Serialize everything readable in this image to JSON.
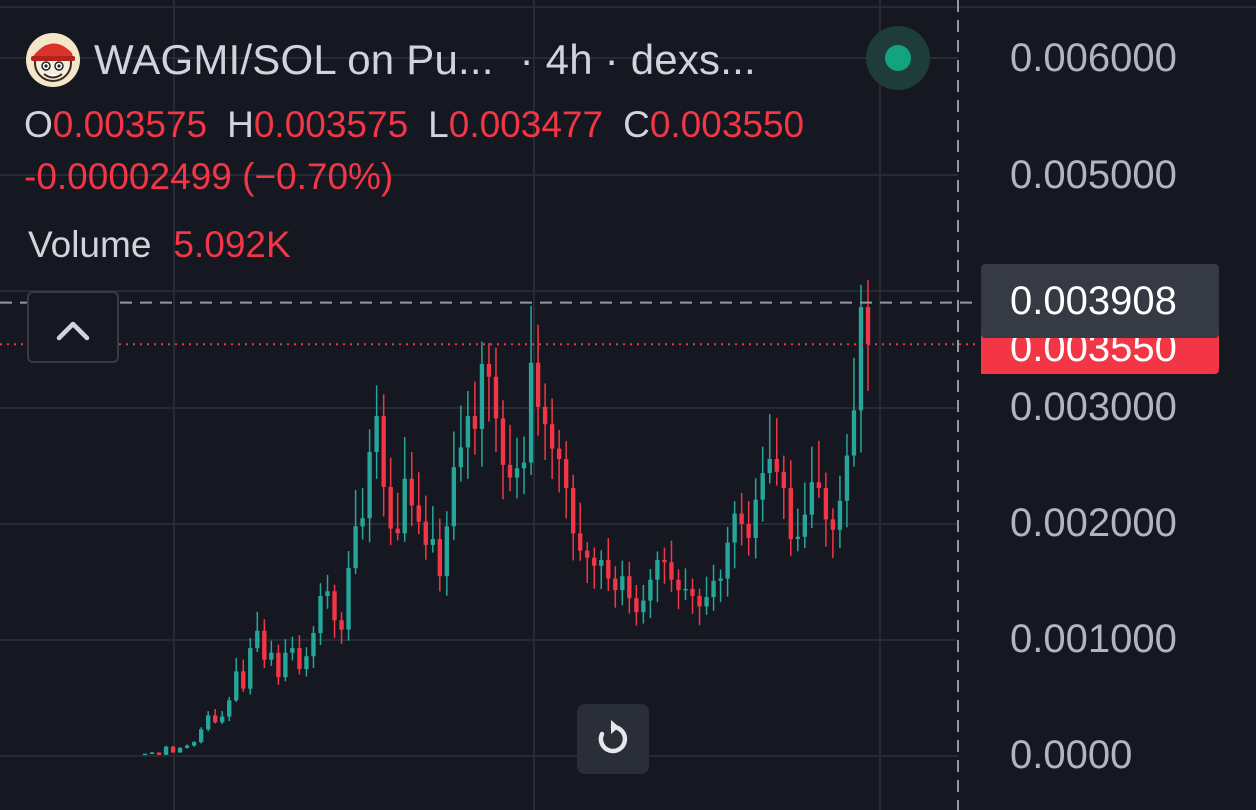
{
  "header": {
    "symbol_title": "WAGMI/SOL on Pu...",
    "interval_source": "· 4h · dexs..."
  },
  "ohlc": {
    "open_label": "O",
    "open": "0.003575",
    "high_label": "H",
    "high": "0.003575",
    "low_label": "L",
    "low": "0.003477",
    "close_label": "C",
    "close": "0.003550",
    "change": "-0.00002499 (−0.70%)"
  },
  "volume": {
    "label": "Volume",
    "value": "5.092K"
  },
  "price_scale": {
    "crosshair_price": "0.003908",
    "last_price": "0.003550"
  },
  "icons": {
    "token_avatar": "cartoon-face-icon",
    "live_status": "live-dot-icon",
    "collapse": "chevron-up-icon",
    "reset": "reset-rotate-icon"
  },
  "colors": {
    "background": "#151821",
    "up": "#26a69a",
    "down": "#f23645",
    "live": "#14a37f",
    "axis_text": "#b2b5be"
  },
  "chart_data": {
    "type": "candlestick",
    "title": "WAGMI/SOL on Pu... · 4h · dexs...",
    "yaxis_ticks": [
      "0.0000",
      "0.001000",
      "0.002000",
      "0.003000",
      "0.005000",
      "0.006000"
    ],
    "ylim": [
      0,
      0.0062
    ],
    "grid": true,
    "last_price": 0.00355,
    "crosshair_price": 0.003908,
    "close_series": [
      2e-05,
      3e-05,
      1e-05,
      8e-05,
      3e-05,
      7e-05,
      9e-05,
      0.00012,
      0.00023,
      0.00035,
      0.00029,
      0.00034,
      0.00048,
      0.00073,
      0.00058,
      0.00093,
      0.00108,
      0.00083,
      0.00089,
      0.00068,
      0.00089,
      0.00093,
      0.00075,
      0.00086,
      0.00106,
      0.00138,
      0.00142,
      0.00117,
      0.00109,
      0.00162,
      0.00198,
      0.00205,
      0.00262,
      0.00293,
      0.00232,
      0.00196,
      0.00192,
      0.00239,
      0.00216,
      0.00202,
      0.00182,
      0.00187,
      0.00155,
      0.00198,
      0.00249,
      0.00266,
      0.00293,
      0.00282,
      0.00338,
      0.00327,
      0.00291,
      0.00251,
      0.0024,
      0.00248,
      0.00253,
      0.00339,
      0.00301,
      0.00286,
      0.00265,
      0.00256,
      0.00231,
      0.00192,
      0.00177,
      0.00171,
      0.00164,
      0.00169,
      0.00153,
      0.00143,
      0.00155,
      0.00136,
      0.00124,
      0.00134,
      0.00152,
      0.00169,
      0.00167,
      0.00152,
      0.00143,
      0.00144,
      0.00138,
      0.00129,
      0.00137,
      0.00151,
      0.00153,
      0.00184,
      0.00209,
      0.002,
      0.00188,
      0.00221,
      0.00244,
      0.00256,
      0.00245,
      0.00231,
      0.00187,
      0.00189,
      0.00208,
      0.00236,
      0.00231,
      0.00204,
      0.00195,
      0.0022,
      0.00259,
      0.00298,
      0.00387,
      0.00355
    ]
  }
}
